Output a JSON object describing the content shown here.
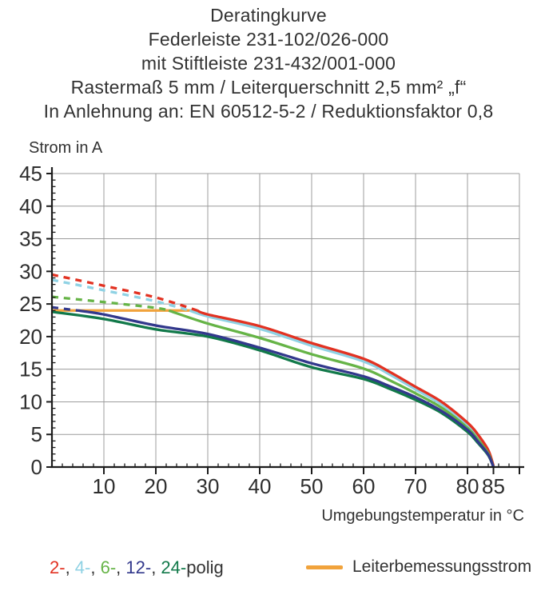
{
  "header": {
    "lines": [
      "Deratingkurve",
      "Federleiste 231-102/026-000",
      "mit Stiftleiste 231-432/001-000",
      "Rastermaß 5 mm / Leiterquerschnitt 2,5 mm² „f“",
      "In Anlehnung an: EN 60512-5-2 / Reduktionsfaktor 0,8"
    ]
  },
  "chart_data": {
    "type": "line",
    "title": "Deratingkurve",
    "xlabel": "Umgebungstemperatur in °C",
    "ylabel": "Strom in A",
    "xlim": [
      0,
      90
    ],
    "ylim": [
      0,
      45
    ],
    "grid": true,
    "grid_color": "#9c9c9c",
    "axes_color": "#1c1c1c",
    "text_color": "#2e2e2e",
    "x_major_ticks": [
      10,
      20,
      30,
      40,
      50,
      60,
      70,
      80,
      85
    ],
    "x_tick_marks": [
      10,
      20,
      30,
      40,
      50,
      60,
      70,
      80,
      85,
      90
    ],
    "x_grid_step": 10,
    "x_minor_step": 2,
    "y_ticks": [
      0,
      5,
      10,
      15,
      20,
      25,
      30,
      35,
      40,
      45
    ],
    "y_grid_step": 5,
    "y_minor_step": 1,
    "series": [
      {
        "name": "4-polig",
        "color": "#8fd2e4",
        "solid_from": 26.5,
        "points": [
          [
            0,
            28.7
          ],
          [
            10,
            27.1
          ],
          [
            20,
            25.4
          ],
          [
            26.5,
            24.0
          ],
          [
            30,
            23.1
          ],
          [
            40,
            21.2
          ],
          [
            50,
            18.6
          ],
          [
            60,
            16.2
          ],
          [
            65,
            14.2
          ],
          [
            70,
            11.9
          ],
          [
            75,
            9.6
          ],
          [
            80,
            6.4
          ],
          [
            82,
            4.6
          ],
          [
            84,
            2.3
          ],
          [
            85,
            0.1
          ]
        ]
      },
      {
        "name": "2-polig",
        "color": "#e23222",
        "solid_from": 28,
        "points": [
          [
            0,
            29.5
          ],
          [
            10,
            27.8
          ],
          [
            20,
            26.0
          ],
          [
            28,
            24.0
          ],
          [
            30,
            23.4
          ],
          [
            40,
            21.6
          ],
          [
            50,
            19.0
          ],
          [
            60,
            16.6
          ],
          [
            65,
            14.6
          ],
          [
            70,
            12.3
          ],
          [
            75,
            10.0
          ],
          [
            80,
            6.8
          ],
          [
            82,
            5.0
          ],
          [
            84,
            2.6
          ],
          [
            85,
            0.2
          ]
        ]
      },
      {
        "name": "6-polig",
        "color": "#66b447",
        "solid_from": 22.5,
        "points": [
          [
            0,
            26.1
          ],
          [
            10,
            25.3
          ],
          [
            20,
            24.4
          ],
          [
            22.5,
            24.0
          ],
          [
            30,
            22.0
          ],
          [
            40,
            19.8
          ],
          [
            50,
            17.3
          ],
          [
            60,
            15.1
          ],
          [
            65,
            13.3
          ],
          [
            70,
            11.3
          ],
          [
            75,
            9.1
          ],
          [
            80,
            6.0
          ],
          [
            82,
            4.2
          ],
          [
            84,
            2.1
          ],
          [
            85,
            0
          ]
        ]
      },
      {
        "name": "24-polig",
        "color": "#12794a",
        "solid_from": 0,
        "points": [
          [
            0,
            23.8
          ],
          [
            10,
            22.7
          ],
          [
            20,
            21.1
          ],
          [
            30,
            20.0
          ],
          [
            40,
            17.9
          ],
          [
            50,
            15.3
          ],
          [
            60,
            13.5
          ],
          [
            65,
            12.0
          ],
          [
            70,
            10.3
          ],
          [
            75,
            8.3
          ],
          [
            80,
            5.4
          ],
          [
            82,
            3.7
          ],
          [
            84,
            1.8
          ],
          [
            85,
            0
          ]
        ]
      },
      {
        "name": "12-polig",
        "color": "#32388c",
        "solid_from": 5,
        "points": [
          [
            0,
            24.5
          ],
          [
            5,
            24.0
          ],
          [
            10,
            23.4
          ],
          [
            20,
            21.7
          ],
          [
            30,
            20.4
          ],
          [
            40,
            18.3
          ],
          [
            50,
            15.9
          ],
          [
            60,
            13.9
          ],
          [
            65,
            12.4
          ],
          [
            70,
            10.7
          ],
          [
            75,
            8.6
          ],
          [
            80,
            5.7
          ],
          [
            82,
            3.9
          ],
          [
            84,
            1.9
          ],
          [
            85,
            0
          ]
        ]
      }
    ],
    "reference_line": {
      "name": "Leiterbemessungsstrom",
      "color": "#f1a33c",
      "value": 24,
      "x_range": [
        0,
        28
      ]
    }
  },
  "legend": {
    "poles": {
      "items": [
        {
          "label": "2-",
          "color": "#e23222"
        },
        {
          "label": "4-",
          "color": "#8fd2e4"
        },
        {
          "label": "6-",
          "color": "#66b447"
        },
        {
          "label": "12-",
          "color": "#32388c"
        },
        {
          "label": "24-",
          "color": "#12794a"
        }
      ],
      "separator": ", ",
      "suffix": "polig",
      "suffix_color": "#323232"
    }
  }
}
